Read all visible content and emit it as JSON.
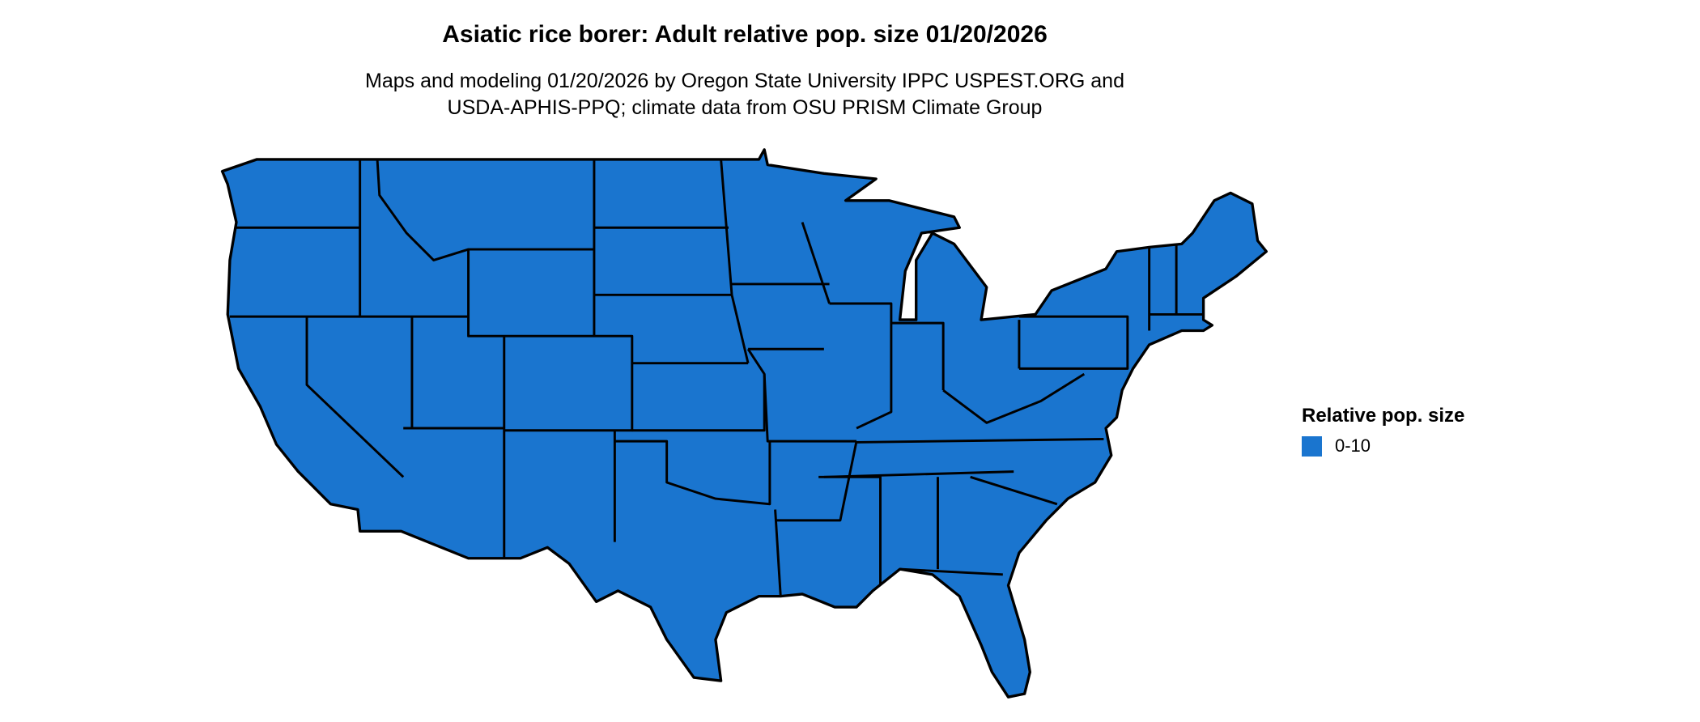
{
  "title": "Asiatic rice borer: Adult relative pop. size 01/20/2026",
  "subtitle_line1": "Maps and modeling 01/20/2026 by Oregon State University IPPC USPEST.ORG and",
  "subtitle_line2": "USDA-APHIS-PPQ; climate data from OSU PRISM Climate Group",
  "map": {
    "region": "Contiguous United States",
    "fill_color": "#1a75cf",
    "border_color": "#000000"
  },
  "legend": {
    "title": "Relative pop. size",
    "items": [
      {
        "label": "0-10",
        "color": "#1a75cf"
      }
    ]
  }
}
